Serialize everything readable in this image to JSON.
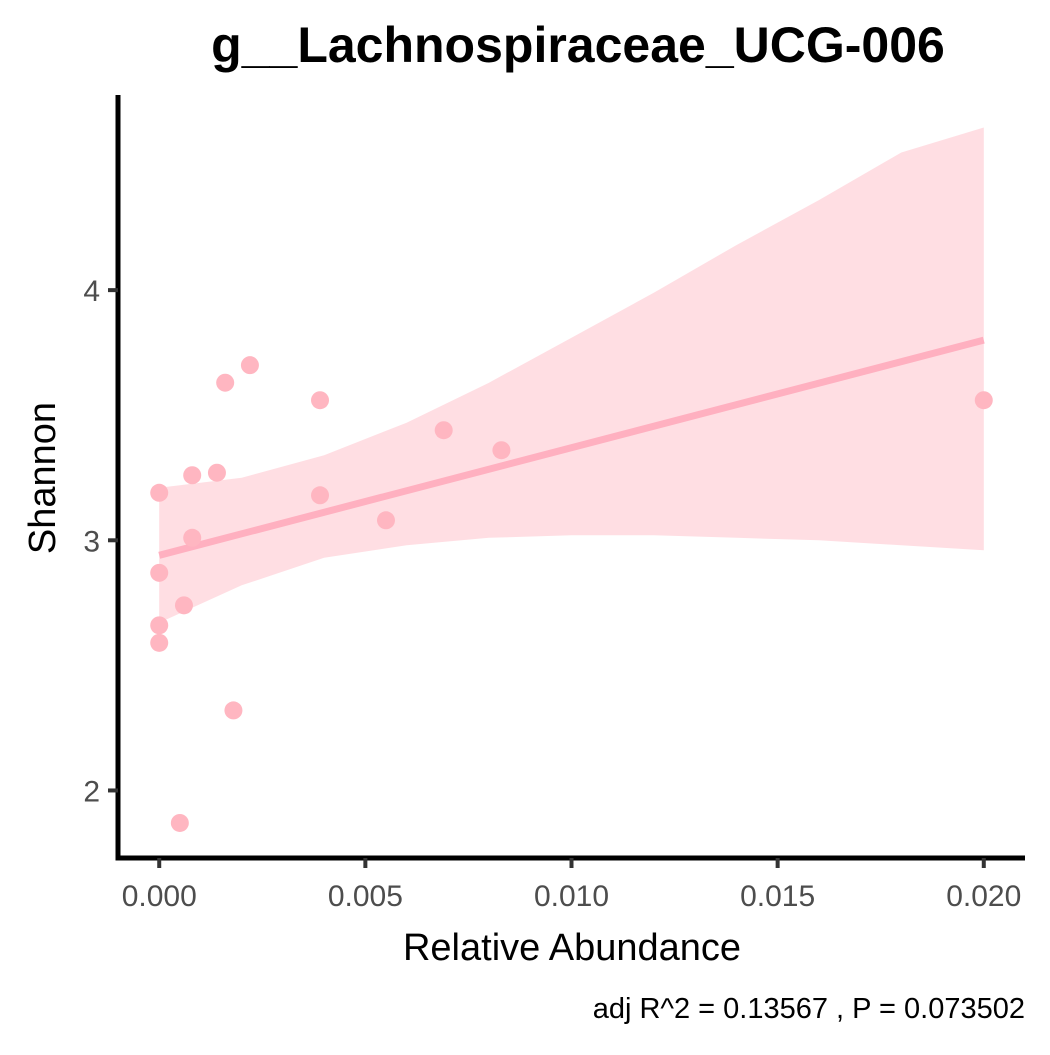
{
  "chart_data": {
    "type": "scatter",
    "title": "g__Lachnospiraceae_UCG-006",
    "xlabel": "Relative Abundance",
    "ylabel": "Shannon",
    "caption": "adj R^2 =  0.13567 , P = 0.073502",
    "xlim": [
      -0.001,
      0.021
    ],
    "ylim": [
      1.73,
      4.78
    ],
    "x_ticks": [
      0.0,
      0.005,
      0.01,
      0.015,
      0.02
    ],
    "x_tick_labels": [
      "0.000",
      "0.005",
      "0.010",
      "0.015",
      "0.020"
    ],
    "y_ticks": [
      2,
      3,
      4
    ],
    "y_tick_labels": [
      "2",
      "3",
      "4"
    ],
    "grid": false,
    "legend": "none",
    "colors": {
      "points": "#ffb6c1",
      "fit_line": "#ffb0c0",
      "confidence_band": "#ffb6c1",
      "axis": "#000000"
    },
    "points": [
      {
        "x": 0.0,
        "y": 3.19
      },
      {
        "x": 0.0,
        "y": 2.87
      },
      {
        "x": 0.0,
        "y": 2.66
      },
      {
        "x": 0.0,
        "y": 2.59
      },
      {
        "x": 0.0005,
        "y": 1.87
      },
      {
        "x": 0.0006,
        "y": 2.74
      },
      {
        "x": 0.0008,
        "y": 3.01
      },
      {
        "x": 0.0008,
        "y": 3.26
      },
      {
        "x": 0.0014,
        "y": 3.27
      },
      {
        "x": 0.0016,
        "y": 3.63
      },
      {
        "x": 0.0018,
        "y": 2.32
      },
      {
        "x": 0.0022,
        "y": 3.7
      },
      {
        "x": 0.0039,
        "y": 3.56
      },
      {
        "x": 0.0039,
        "y": 3.18
      },
      {
        "x": 0.0055,
        "y": 3.08
      },
      {
        "x": 0.0069,
        "y": 3.44
      },
      {
        "x": 0.0083,
        "y": 3.36
      },
      {
        "x": 0.02,
        "y": 3.56
      }
    ],
    "fit_line": {
      "x": [
        0.0,
        0.02
      ],
      "y": [
        2.94,
        3.8
      ]
    },
    "confidence_band": {
      "x": [
        0.0,
        0.002,
        0.004,
        0.006,
        0.008,
        0.01,
        0.012,
        0.014,
        0.016,
        0.018,
        0.02
      ],
      "upper": [
        3.21,
        3.25,
        3.34,
        3.47,
        3.63,
        3.81,
        3.99,
        4.18,
        4.36,
        4.55,
        4.65
      ],
      "lower": [
        2.67,
        2.82,
        2.93,
        2.98,
        3.01,
        3.02,
        3.02,
        3.01,
        3.0,
        2.98,
        2.96
      ]
    }
  }
}
